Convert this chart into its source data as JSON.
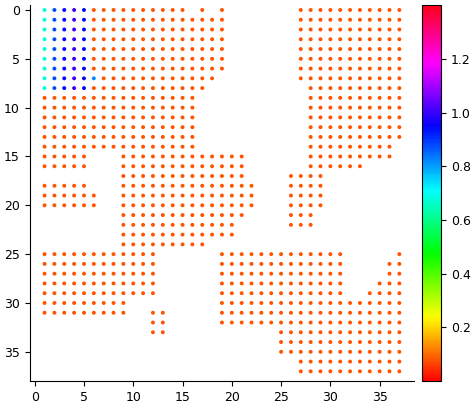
{
  "colormap": "hsv",
  "vmin": 0.0,
  "vmax": 1.4,
  "colorbar_ticks": [
    0.2,
    0.4,
    0.6,
    0.8,
    1.0,
    1.2
  ],
  "dot_size": 8,
  "background_color": "#ffffff",
  "figsize": [
    4.74,
    4.08
  ],
  "dpi": 100
}
